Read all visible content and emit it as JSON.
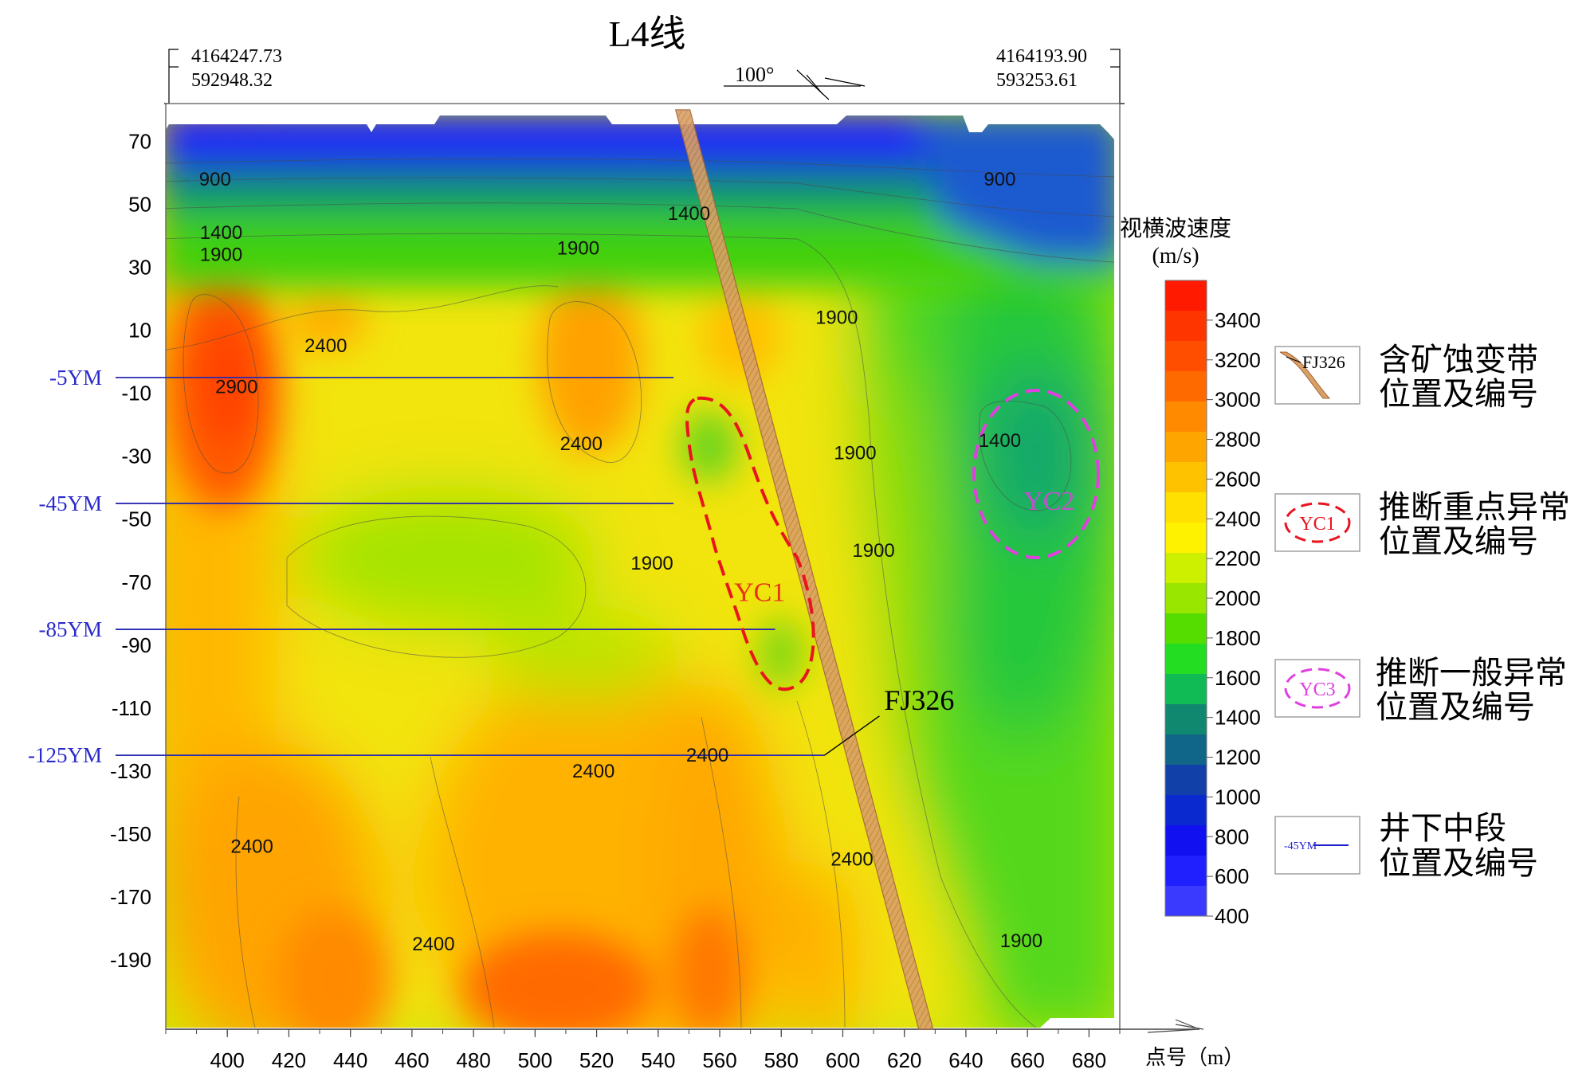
{
  "chart_data": {
    "type": "heatmap",
    "title": "L4线",
    "coords": {
      "left_north": "4164247.73",
      "left_east": "592948.32",
      "right_north": "4164193.90",
      "right_east": "593253.61",
      "azimuth": "100°"
    },
    "x_unit_label": "点号（m）",
    "x_ticks": [
      400,
      420,
      440,
      460,
      480,
      500,
      520,
      540,
      560,
      580,
      600,
      620,
      640,
      660,
      680
    ],
    "y_ticks": [
      70,
      50,
      30,
      10,
      -10,
      -30,
      -50,
      -70,
      -90,
      -110,
      -130,
      -150,
      -170,
      -190
    ],
    "xlim": [
      380,
      690
    ],
    "ylim": [
      -212,
      82
    ],
    "colorbar": {
      "title_line1": "视横波速度",
      "title_line2": "(m/s)",
      "ticks": [
        3400,
        3200,
        3000,
        2800,
        2600,
        2400,
        2200,
        2000,
        1800,
        1600,
        1400,
        1200,
        1000,
        800,
        600,
        400
      ],
      "colors": [
        "#ff1a00",
        "#ff3500",
        "#ff4e00",
        "#ff6a00",
        "#ff8a00",
        "#ffa500",
        "#ffc200",
        "#ffe000",
        "#fff200",
        "#ccf000",
        "#99e600",
        "#55dd00",
        "#22dd22",
        "#10bb55",
        "#108870",
        "#106688",
        "#1040a8",
        "#0a2ad0",
        "#1010f0",
        "#2020ff",
        "#3a3aff"
      ]
    },
    "levels": [
      {
        "name": "-5YM",
        "y": -5,
        "x_end": 545
      },
      {
        "name": "-45YM",
        "y": -45,
        "x_end": 545
      },
      {
        "name": "-85YM",
        "y": -85,
        "x_end": 578
      },
      {
        "name": "-125YM",
        "y": -125,
        "x_end": 594
      }
    ],
    "fault": {
      "name": "FJ326",
      "x_top": 548,
      "y_top": 80,
      "x_bottom": 627,
      "y_bottom": -212,
      "label_x": 615,
      "label_y": -110
    },
    "anomalies": [
      {
        "name": "YC1",
        "color": "#e8141e",
        "label_x": 573,
        "label_y": -76
      },
      {
        "name": "YC2",
        "color": "#e040e0",
        "label_x": 667,
        "label_y": -47
      }
    ],
    "contour_labels": [
      {
        "text": "900",
        "x": 396,
        "y": 56
      },
      {
        "text": "1400",
        "x": 398,
        "y": 39
      },
      {
        "text": "1900",
        "x": 398,
        "y": 32
      },
      {
        "text": "2400",
        "x": 432,
        "y": 3
      },
      {
        "text": "2900",
        "x": 403,
        "y": -10
      },
      {
        "text": "1900",
        "x": 514,
        "y": 34
      },
      {
        "text": "1400",
        "x": 550,
        "y": 45
      },
      {
        "text": "900",
        "x": 651,
        "y": 56
      },
      {
        "text": "2400",
        "x": 515,
        "y": -28
      },
      {
        "text": "1900",
        "x": 598,
        "y": 12
      },
      {
        "text": "1900",
        "x": 604,
        "y": -31
      },
      {
        "text": "1400",
        "x": 651,
        "y": -27
      },
      {
        "text": "1900",
        "x": 538,
        "y": -66
      },
      {
        "text": "1900",
        "x": 610,
        "y": -62
      },
      {
        "text": "2400",
        "x": 519,
        "y": -132
      },
      {
        "text": "2400",
        "x": 556,
        "y": -127
      },
      {
        "text": "2400",
        "x": 603,
        "y": -160
      },
      {
        "text": "2400",
        "x": 408,
        "y": -156
      },
      {
        "text": "2400",
        "x": 467,
        "y": -187
      },
      {
        "text": "1900",
        "x": 658,
        "y": -186
      }
    ],
    "legend": [
      {
        "kind": "fault",
        "sample": "FJ326",
        "line1": "含矿蚀变带",
        "line2": "位置及编号"
      },
      {
        "kind": "key-anomaly",
        "sample": "YC1",
        "line1": "推断重点异常",
        "line2": "位置及编号"
      },
      {
        "kind": "general-anomaly",
        "sample": "YC3",
        "line1": "推断一般异常",
        "line2": "位置及编号"
      },
      {
        "kind": "level",
        "sample": "-45YM",
        "line1": "井下中段",
        "line2": "位置及编号"
      }
    ]
  }
}
